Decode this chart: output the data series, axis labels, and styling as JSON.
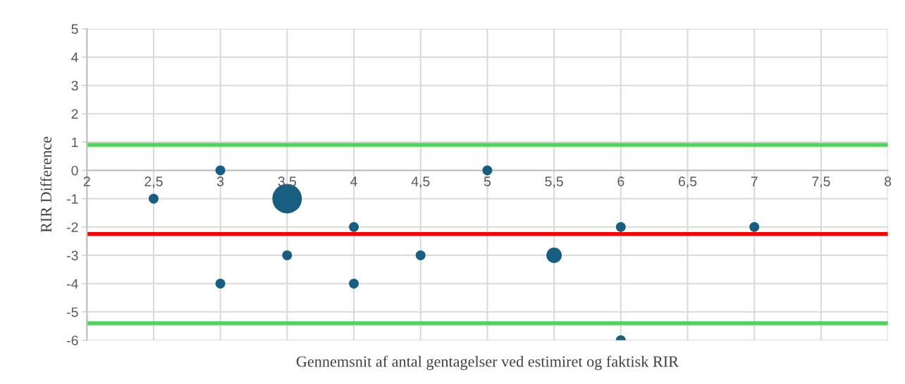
{
  "chart_data": {
    "type": "bubble",
    "xlabel": "Gennemsnit af antal gentagelser ved estimiret og faktisk RIR",
    "ylabel": "RIR Difference",
    "series": [
      {
        "color": "#175e82",
        "x": [
          2.5,
          3,
          3,
          3.5,
          3.5,
          4,
          4,
          4.5,
          5,
          5.5,
          6,
          6,
          7
        ],
        "values": [
          -1,
          0,
          -4,
          -1,
          -3,
          -2,
          -4,
          -3,
          0,
          -3,
          -2,
          -6,
          -2
        ],
        "sizes": [
          0.11,
          0.11,
          0.11,
          1,
          0.11,
          0.11,
          0.11,
          0.11,
          0.11,
          0.27,
          0.11,
          0.11,
          0.11
        ]
      }
    ],
    "xlim": [
      2,
      8
    ],
    "xticks": [
      2,
      {
        "value": 2.5,
        "label": "2,5"
      },
      3,
      {
        "value": 3.5,
        "label": "3,5"
      },
      4,
      {
        "value": 4.5,
        "label": "4,5"
      },
      5,
      {
        "value": 5.5,
        "label": "5,5"
      },
      6,
      {
        "value": 6.5,
        "label": "6,5"
      },
      7,
      {
        "value": 7.5,
        "label": "7,5"
      },
      8
    ],
    "ylim": [
      -6,
      5
    ],
    "yticks": [
      -6,
      -5,
      -4,
      -3,
      -2,
      -1,
      0,
      1,
      2,
      3,
      4,
      5
    ],
    "ref_lines": [
      {
        "axis": "y",
        "value": 0.9,
        "color": "#4cd659"
      },
      {
        "axis": "y",
        "value": -2.25,
        "color": "#ff0000"
      },
      {
        "axis": "y",
        "value": -5.4,
        "color": "#4cd659"
      }
    ],
    "grid": true
  }
}
